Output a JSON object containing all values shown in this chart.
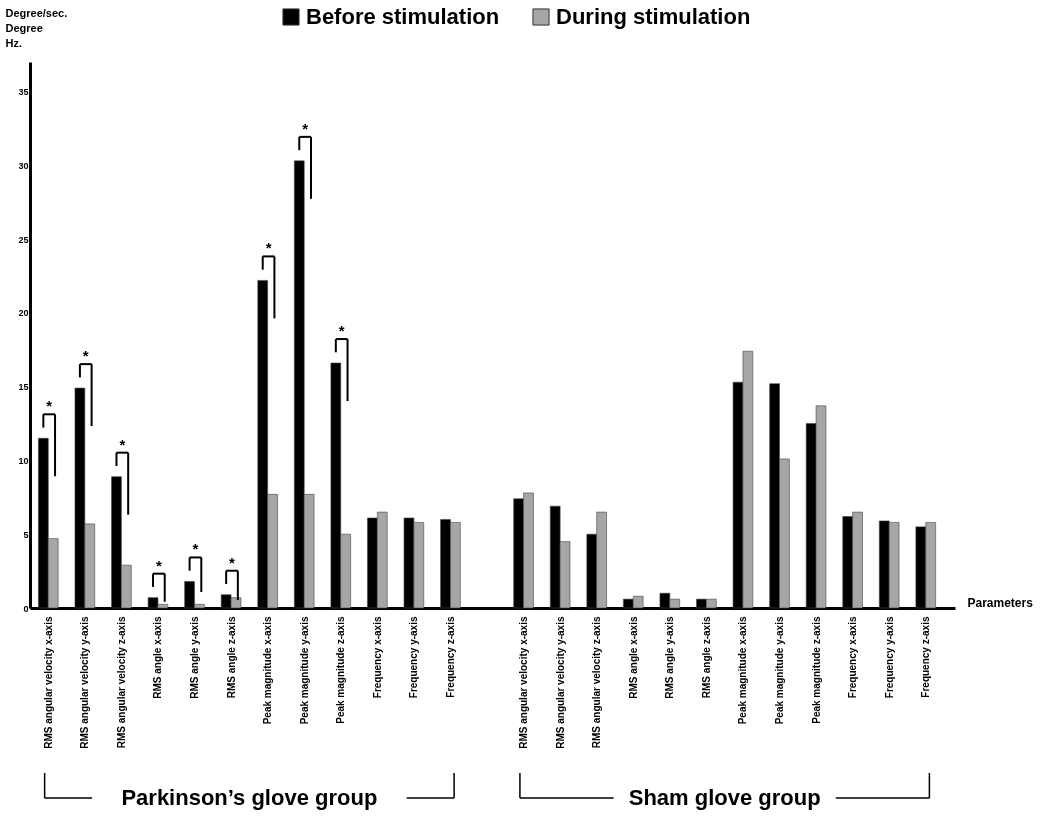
{
  "chart_data": {
    "type": "bar",
    "ylabel": "Degree/sec.\nDegree\nHz.",
    "xlabel": "Parameters",
    "categories": [
      "RMS angular velocity x-axis",
      "RMS angular velocity y-axis",
      "RMS angular velocity z-axis",
      "RMS angle x-axis",
      "RMS angle y-axis",
      "RMS angle z-axis",
      "Peak magnitude x-axis",
      "Peak magnitude y-axis",
      "Peak magnitude z-axis",
      "Frequency x-axis",
      "Frequency y-axis",
      "Frequency z-axis",
      null,
      "RMS angular velocity x-axis",
      "RMS angular velocity y-axis",
      "RMS angular velocity z-axis",
      "RMS angle x-axis",
      "RMS angle y-axis",
      "RMS angle z-axis",
      "Peak magnitude x-axis",
      "Peak magnitude y-axis",
      "Peak magnitude z-axis",
      "Frequency x-axis",
      "Frequency y-axis",
      "Frequency z-axis"
    ],
    "series": [
      {
        "name": "Before stimulation",
        "color": "#000000",
        "values": [
          11.5,
          14.9,
          8.9,
          0.7,
          1.8,
          0.9,
          22.2,
          30.3,
          16.6,
          6.1,
          6.1,
          6.0,
          null,
          7.4,
          6.9,
          5.0,
          0.6,
          1.0,
          0.6,
          15.3,
          15.2,
          12.5,
          6.2,
          5.9,
          5.5
        ]
      },
      {
        "name": "During stimulation",
        "color": "#a6a6a6",
        "values": [
          4.7,
          5.7,
          2.9,
          0.25,
          0.25,
          0.7,
          7.7,
          7.7,
          5.0,
          6.5,
          5.8,
          5.8,
          null,
          7.8,
          4.5,
          6.5,
          0.8,
          0.6,
          0.6,
          17.4,
          10.1,
          13.7,
          6.5,
          5.8,
          5.8
        ]
      }
    ],
    "ylim": [
      0,
      37
    ],
    "yticks": [
      0,
      5,
      10,
      15,
      20,
      25,
      30,
      35
    ],
    "grid": false,
    "legend": "top",
    "annotations": [
      {
        "text": "*",
        "x": "RMS angular velocity x-axis",
        "y": 11.5
      },
      {
        "text": "*",
        "x": "RMS angular velocity y-axis",
        "y": 14.9
      },
      {
        "text": "*",
        "x": "RMS angular velocity z-axis",
        "y": 8.9
      },
      {
        "text": "*",
        "x": "RMS angle x-axis",
        "y": 0.7
      },
      {
        "text": "*",
        "x": "RMS angle y-axis",
        "y": 1.8
      },
      {
        "text": "*",
        "x": "RMS angle z-axis",
        "y": 0.9
      },
      {
        "text": "*",
        "x": "Peak magnitude x-axis",
        "y": 22.2
      },
      {
        "text": "*",
        "x": "Peak magnitude y-axis",
        "y": 30.3
      },
      {
        "text": "*",
        "x": "Peak magnitude z-axis",
        "y": 16.6
      },
      "Parkinson’s glove group",
      "Sham glove group"
    ]
  }
}
